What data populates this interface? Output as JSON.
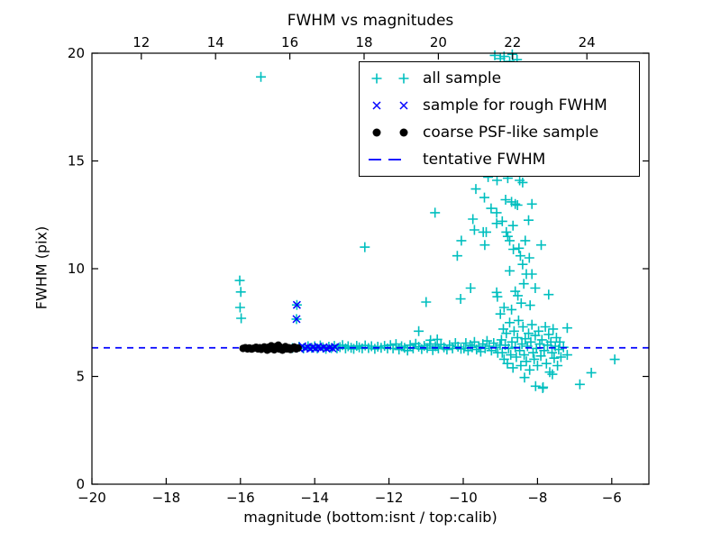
{
  "window": {
    "background": "#ffffff"
  },
  "chart_data": {
    "type": "scatter",
    "title": "FWHM vs magnitudes",
    "xlabel": "magnitude (bottom:isnt / top:calib)",
    "ylabel": "FWHM (pix)",
    "xlim": [
      -20,
      -5
    ],
    "ylim": [
      0,
      20
    ],
    "grid": false,
    "x_ticks_bottom": [
      -20,
      -18,
      -16,
      -14,
      -12,
      -10,
      -8,
      -6
    ],
    "x_ticks_top": [
      12,
      14,
      16,
      18,
      20,
      22,
      24
    ],
    "top_axis_offset": 30.67,
    "y_ticks": [
      0,
      5,
      10,
      15,
      20
    ],
    "axes_color": "#000000",
    "legend_position": "upper right",
    "series": [
      {
        "name": "all sample",
        "marker": "plus",
        "color": "#00bfbf",
        "points": [
          [
            -16.02,
            9.45
          ],
          [
            -15.99,
            8.92
          ],
          [
            -16.01,
            8.2
          ],
          [
            -15.98,
            7.7
          ],
          [
            -15.45,
            18.9
          ],
          [
            -14.48,
            8.32
          ],
          [
            -14.49,
            7.66
          ],
          [
            -14.6,
            6.32
          ],
          [
            -14.42,
            6.38
          ],
          [
            -14.3,
            6.3
          ],
          [
            -14.18,
            6.4
          ],
          [
            -14.08,
            6.33
          ],
          [
            -14.0,
            6.4
          ],
          [
            -13.93,
            6.3
          ],
          [
            -13.85,
            6.44
          ],
          [
            -13.78,
            6.35
          ],
          [
            -13.7,
            6.28
          ],
          [
            -13.62,
            6.38
          ],
          [
            -13.55,
            6.32
          ],
          [
            -13.47,
            6.42
          ],
          [
            -13.4,
            6.3
          ],
          [
            -13.32,
            6.36
          ],
          [
            -13.25,
            6.45
          ],
          [
            -13.17,
            6.3
          ],
          [
            -13.1,
            6.4
          ],
          [
            -13.02,
            6.33
          ],
          [
            -12.95,
            6.28
          ],
          [
            -12.87,
            6.42
          ],
          [
            -12.8,
            6.35
          ],
          [
            -12.72,
            6.3
          ],
          [
            -12.64,
            6.44
          ],
          [
            -12.55,
            6.32
          ],
          [
            -12.47,
            6.4
          ],
          [
            -12.38,
            6.28
          ],
          [
            -12.3,
            6.38
          ],
          [
            -12.21,
            6.33
          ],
          [
            -12.12,
            6.42
          ],
          [
            -12.04,
            6.3
          ],
          [
            -11.96,
            6.45
          ],
          [
            -11.89,
            6.3
          ],
          [
            -11.81,
            6.5
          ],
          [
            -11.73,
            6.25
          ],
          [
            -11.66,
            6.4
          ],
          [
            -11.58,
            6.33
          ],
          [
            -11.5,
            6.2
          ],
          [
            -11.43,
            6.45
          ],
          [
            -11.35,
            6.3
          ],
          [
            -11.28,
            6.52
          ],
          [
            -11.2,
            6.38
          ],
          [
            -11.12,
            6.27
          ],
          [
            -11.05,
            6.42
          ],
          [
            -10.97,
            6.32
          ],
          [
            -10.9,
            6.5
          ],
          [
            -10.82,
            6.22
          ],
          [
            -10.75,
            6.4
          ],
          [
            -10.67,
            6.3
          ],
          [
            -10.6,
            6.48
          ],
          [
            -10.52,
            6.35
          ],
          [
            -10.44,
            6.25
          ],
          [
            -10.37,
            6.45
          ],
          [
            -10.29,
            6.3
          ],
          [
            -10.21,
            6.55
          ],
          [
            -10.14,
            6.38
          ],
          [
            -10.06,
            6.28
          ],
          [
            -9.98,
            6.3
          ],
          [
            -9.93,
            6.55
          ],
          [
            -9.87,
            6.2
          ],
          [
            -9.81,
            6.45
          ],
          [
            -9.76,
            6.35
          ],
          [
            -9.7,
            6.6
          ],
          [
            -9.64,
            6.25
          ],
          [
            -9.58,
            6.4
          ],
          [
            -9.53,
            6.15
          ],
          [
            -9.47,
            6.5
          ],
          [
            -9.41,
            6.3
          ],
          [
            -9.36,
            6.65
          ],
          [
            -9.3,
            6.4
          ],
          [
            -9.24,
            6.2
          ],
          [
            -9.18,
            6.55
          ],
          [
            -9.12,
            6.35
          ],
          [
            -9.07,
            6.1
          ],
          [
            -9.01,
            6.45
          ],
          [
            -8.97,
            6.7
          ],
          [
            -8.95,
            6.1
          ],
          [
            -8.92,
            7.2
          ],
          [
            -8.9,
            5.8
          ],
          [
            -8.87,
            6.45
          ],
          [
            -8.84,
            7.0
          ],
          [
            -8.81,
            5.6
          ],
          [
            -8.78,
            6.3
          ],
          [
            -8.75,
            7.5
          ],
          [
            -8.72,
            6.0
          ],
          [
            -8.69,
            6.6
          ],
          [
            -8.66,
            5.4
          ],
          [
            -8.63,
            7.1
          ],
          [
            -8.6,
            6.35
          ],
          [
            -8.57,
            5.9
          ],
          [
            -8.54,
            6.8
          ],
          [
            -8.51,
            7.6
          ],
          [
            -8.48,
            6.2
          ],
          [
            -8.45,
            5.5
          ],
          [
            -8.42,
            6.5
          ],
          [
            -8.39,
            7.3
          ],
          [
            -8.36,
            6.0
          ],
          [
            -8.33,
            6.75
          ],
          [
            -8.3,
            5.7
          ],
          [
            -8.27,
            6.4
          ],
          [
            -8.24,
            7.0
          ],
          [
            -8.21,
            5.3
          ],
          [
            -8.18,
            6.6
          ],
          [
            -8.15,
            7.4
          ],
          [
            -8.12,
            6.1
          ],
          [
            -8.09,
            5.8
          ],
          [
            -8.06,
            6.9
          ],
          [
            -8.03,
            6.3
          ],
          [
            -8.0,
            5.5
          ],
          [
            -7.97,
            7.1
          ],
          [
            -7.94,
            6.5
          ],
          [
            -7.91,
            5.95
          ],
          [
            -7.88,
            6.7
          ],
          [
            -7.85,
            4.5
          ],
          [
            -7.82,
            6.2
          ],
          [
            -7.79,
            7.3
          ],
          [
            -7.76,
            5.6
          ],
          [
            -7.73,
            6.45
          ],
          [
            -7.7,
            6.95
          ],
          [
            -7.67,
            5.2
          ],
          [
            -7.64,
            6.6
          ],
          [
            -7.61,
            6.1
          ],
          [
            -7.58,
            7.2
          ],
          [
            -7.55,
            5.85
          ],
          [
            -7.52,
            6.4
          ],
          [
            -7.49,
            6.8
          ],
          [
            -7.46,
            5.5
          ],
          [
            -7.43,
            6.25
          ],
          [
            -7.4,
            6.6
          ],
          [
            -7.37,
            5.9
          ],
          [
            -7.3,
            6.35
          ],
          [
            -7.2,
            7.25
          ],
          [
            -7.2,
            6.0
          ],
          [
            -8.35,
            4.95
          ],
          [
            -8.05,
            4.55
          ],
          [
            -7.86,
            4.46
          ],
          [
            -7.6,
            5.1
          ],
          [
            -6.86,
            4.63
          ],
          [
            -6.55,
            5.17
          ],
          [
            -5.92,
            5.79
          ],
          [
            -12.65,
            11.0
          ],
          [
            -11.2,
            7.1
          ],
          [
            -11.0,
            8.45
          ],
          [
            -10.88,
            6.68
          ],
          [
            -10.7,
            6.72
          ],
          [
            -10.76,
            12.6
          ],
          [
            -10.16,
            10.6
          ],
          [
            -10.05,
            11.3
          ],
          [
            -10.07,
            8.6
          ],
          [
            -9.8,
            9.1
          ],
          [
            -9.33,
            14.25
          ],
          [
            -9.09,
            14.1
          ],
          [
            -8.8,
            14.2
          ],
          [
            -8.48,
            14.1
          ],
          [
            -8.4,
            14.0
          ],
          [
            -9.66,
            13.7
          ],
          [
            -9.43,
            13.3
          ],
          [
            -8.86,
            13.2
          ],
          [
            -8.7,
            13.1
          ],
          [
            -8.6,
            13.0
          ],
          [
            -8.54,
            12.95
          ],
          [
            -8.15,
            13.0
          ],
          [
            -9.25,
            12.8
          ],
          [
            -9.1,
            12.6
          ],
          [
            -9.74,
            12.3
          ],
          [
            -8.24,
            12.25
          ],
          [
            -9.1,
            12.1
          ],
          [
            -8.95,
            12.2
          ],
          [
            -8.66,
            12.0
          ],
          [
            -9.7,
            11.8
          ],
          [
            -9.46,
            11.7
          ],
          [
            -9.38,
            11.7
          ],
          [
            -8.84,
            11.7
          ],
          [
            -8.8,
            11.5
          ],
          [
            -8.75,
            11.3
          ],
          [
            -8.33,
            11.3
          ],
          [
            -9.42,
            11.1
          ],
          [
            -7.9,
            11.1
          ],
          [
            -8.65,
            10.9
          ],
          [
            -8.5,
            10.95
          ],
          [
            -8.46,
            10.6
          ],
          [
            -8.22,
            10.5
          ],
          [
            -8.4,
            10.2
          ],
          [
            -8.75,
            9.9
          ],
          [
            -8.3,
            9.75
          ],
          [
            -8.15,
            9.75
          ],
          [
            -8.37,
            9.3
          ],
          [
            -8.06,
            9.1
          ],
          [
            -9.1,
            8.9
          ],
          [
            -8.6,
            8.95
          ],
          [
            -7.7,
            8.8
          ],
          [
            -9.08,
            8.7
          ],
          [
            -8.53,
            8.75
          ],
          [
            -8.44,
            8.4
          ],
          [
            -8.2,
            8.3
          ],
          [
            -8.9,
            8.2
          ],
          [
            -8.7,
            8.1
          ],
          [
            -9.0,
            7.9
          ],
          [
            -9.15,
            19.9
          ],
          [
            -8.9,
            19.85
          ],
          [
            -8.68,
            19.95
          ],
          [
            -8.55,
            19.7
          ],
          [
            -8.75,
            19.62
          ],
          [
            -9.0,
            19.75
          ]
        ]
      },
      {
        "name": "sample for rough FWHM",
        "marker": "x",
        "color": "#0000ff",
        "points": [
          [
            -14.48,
            8.32
          ],
          [
            -14.49,
            7.66
          ],
          [
            -14.55,
            6.3
          ],
          [
            -14.47,
            6.36
          ],
          [
            -14.4,
            6.28
          ],
          [
            -14.33,
            6.4
          ],
          [
            -14.26,
            6.31
          ],
          [
            -14.19,
            6.37
          ],
          [
            -14.12,
            6.29
          ],
          [
            -14.05,
            6.35
          ],
          [
            -13.98,
            6.3
          ],
          [
            -13.91,
            6.38
          ],
          [
            -13.84,
            6.31
          ],
          [
            -13.76,
            6.36
          ],
          [
            -13.68,
            6.29
          ],
          [
            -13.6,
            6.34
          ],
          [
            -13.52,
            6.3
          ],
          [
            -13.45,
            6.37
          ]
        ]
      },
      {
        "name": "coarse PSF-like sample",
        "marker": "dot",
        "color": "#000000",
        "points": [
          [
            -15.93,
            6.3
          ],
          [
            -15.87,
            6.33
          ],
          [
            -15.81,
            6.28
          ],
          [
            -15.76,
            6.32
          ],
          [
            -15.7,
            6.27
          ],
          [
            -15.64,
            6.31
          ],
          [
            -15.58,
            6.35
          ],
          [
            -15.53,
            6.28
          ],
          [
            -15.48,
            6.33
          ],
          [
            -15.44,
            6.26
          ],
          [
            -15.4,
            6.31
          ],
          [
            -15.36,
            6.37
          ],
          [
            -15.32,
            6.3
          ],
          [
            -15.28,
            6.22
          ],
          [
            -15.25,
            6.35
          ],
          [
            -15.21,
            6.28
          ],
          [
            -15.17,
            6.42
          ],
          [
            -15.13,
            6.32
          ],
          [
            -15.09,
            6.24
          ],
          [
            -15.05,
            6.38
          ],
          [
            -15.02,
            6.3
          ],
          [
            -14.98,
            6.45
          ],
          [
            -14.95,
            6.27
          ],
          [
            -14.91,
            6.34
          ],
          [
            -14.87,
            6.22
          ],
          [
            -14.83,
            6.31
          ],
          [
            -14.79,
            6.38
          ],
          [
            -14.75,
            6.28
          ],
          [
            -14.7,
            6.33
          ],
          [
            -14.65,
            6.25
          ],
          [
            -14.6,
            6.31
          ],
          [
            -14.55,
            6.36
          ],
          [
            -14.5,
            6.28
          ],
          [
            -14.45,
            6.32
          ]
        ]
      },
      {
        "name": "tentative FWHM",
        "marker": "hline",
        "color": "#0000ff",
        "y": 6.33
      }
    ]
  }
}
